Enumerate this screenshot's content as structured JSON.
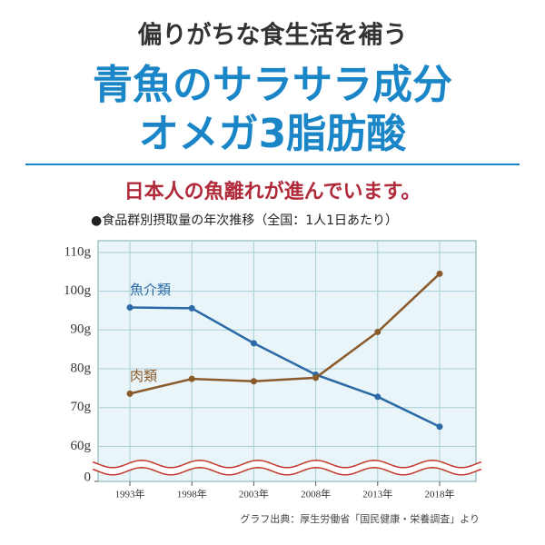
{
  "header": {
    "lead": "偏りがちな食生活を補う",
    "headline": [
      "青魚のサラサラ成分",
      "オメガ3脂肪酸"
    ],
    "notice": "日本人の魚離れが進んでいます。"
  },
  "chart_data": {
    "type": "line",
    "title": "●食品群別摂取量の年次推移（全国：1人1日あたり）",
    "source": "グラフ出典：厚生労働省「国民健康・栄養調査」より",
    "categories": [
      "1993年",
      "1998年",
      "2003年",
      "2008年",
      "2013年",
      "2018年"
    ],
    "series": [
      {
        "name": "魚介類",
        "color": "#2b6aa6",
        "values": [
          95.8,
          95.6,
          86.6,
          78.5,
          72.8,
          65.1
        ]
      },
      {
        "name": "肉類",
        "color": "#8b5a2b",
        "values": [
          73.6,
          77.4,
          76.8,
          77.7,
          89.5,
          104.5
        ]
      }
    ],
    "ylim": [
      51,
      113
    ],
    "yticks": [
      {
        "value": 60,
        "label": "60g"
      },
      {
        "value": 70,
        "label": "70g"
      },
      {
        "value": 80,
        "label": "80g"
      },
      {
        "value": 90,
        "label": "90g"
      },
      {
        "value": 100,
        "label": "100g"
      },
      {
        "value": 110,
        "label": "110g"
      }
    ],
    "broken_axis": {
      "below": 60,
      "origin": 0
    },
    "grid": true
  }
}
